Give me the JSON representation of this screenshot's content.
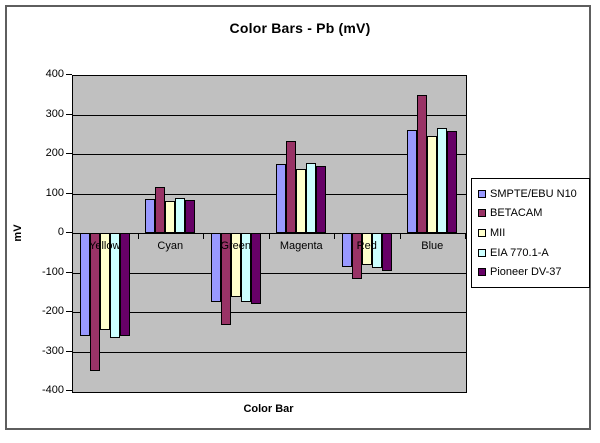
{
  "chart_data": {
    "type": "bar",
    "title": "Color Bars - Pb (mV)",
    "xlabel": "Color Bar",
    "ylabel": "mV",
    "ylim": [
      -400,
      400
    ],
    "ytick_step": 100,
    "grid": true,
    "legend_position": "right",
    "plot_bg_color": "#c0c0c0",
    "gridline_color": "#000000",
    "categories": [
      "Yellow",
      "Cyan",
      "Green",
      "Magenta",
      "Red",
      "Blue"
    ],
    "series": [
      {
        "name": "SMPTE/EBU N10",
        "color": "#9999ff",
        "values": [
          -262,
          87,
          -175,
          175,
          -87,
          262
        ]
      },
      {
        "name": "BETACAM",
        "color": "#993366",
        "values": [
          -350,
          117,
          -233,
          233,
          -117,
          350
        ]
      },
      {
        "name": "MII",
        "color": "#ffffcc",
        "values": [
          -245,
          81,
          -162,
          162,
          -81,
          245
        ]
      },
      {
        "name": "EIA 770.1-A",
        "color": "#ccffff",
        "values": [
          -265,
          89,
          -175,
          177,
          -89,
          265
        ]
      },
      {
        "name": "Pioneer DV-37",
        "color": "#660066",
        "values": [
          -262,
          84,
          -180,
          170,
          -95,
          257
        ]
      }
    ]
  }
}
